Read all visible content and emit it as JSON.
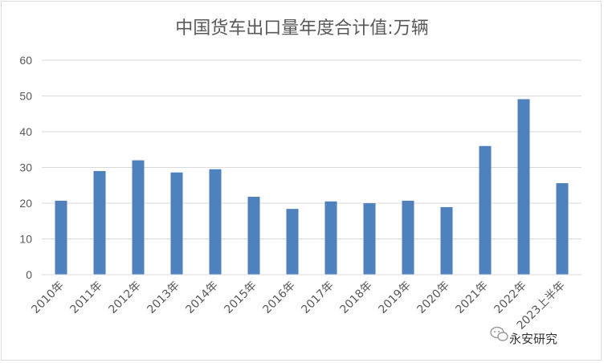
{
  "chart_data": {
    "type": "bar",
    "title": "中国货车出口量年度合计值:万辆",
    "xlabel": "",
    "ylabel": "",
    "categories": [
      "2010年",
      "2011年",
      "2012年",
      "2013年",
      "2014年",
      "2015年",
      "2016年",
      "2017年",
      "2018年",
      "2019年",
      "2020年",
      "2021年",
      "2022年",
      "2023上半年"
    ],
    "values": [
      20.7,
      29.0,
      32.0,
      28.6,
      29.5,
      21.8,
      18.4,
      20.5,
      20.0,
      20.7,
      18.9,
      36.0,
      49.1,
      25.6
    ],
    "ylim": [
      0,
      60
    ],
    "yticks": [
      0,
      10,
      20,
      30,
      40,
      50,
      60
    ],
    "grid": true,
    "legend": "none",
    "bar_color": "#4f81bd",
    "grid_color": "#d9d9d9"
  },
  "watermark": {
    "text": "永安研究",
    "icon": "wechat-icon"
  }
}
